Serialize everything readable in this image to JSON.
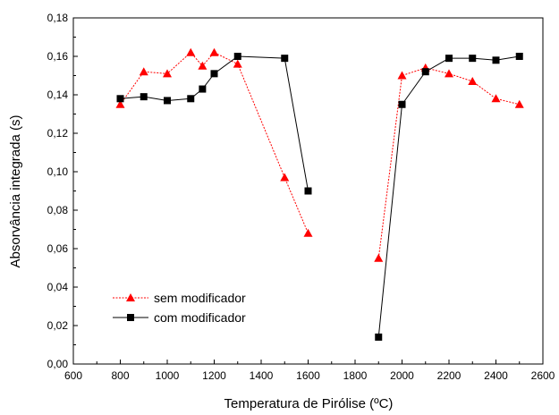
{
  "chart_data": {
    "type": "scatter",
    "xlabel": "Temperatura de Pirólise (ºC)",
    "ylabel": "Absorvância integrada (s)",
    "xlim": [
      600,
      2600
    ],
    "ylim": [
      0.0,
      0.18
    ],
    "x_ticks": [
      600,
      800,
      1000,
      1200,
      1400,
      1600,
      1800,
      2000,
      2200,
      2400,
      2600
    ],
    "x_tick_labels": [
      "600",
      "800",
      "1000",
      "1200",
      "1400",
      "1600",
      "1800",
      "2000",
      "2200",
      "2400",
      "2600"
    ],
    "y_ticks": [
      0.0,
      0.02,
      0.04,
      0.06,
      0.08,
      0.1,
      0.12,
      0.14,
      0.16,
      0.18
    ],
    "y_tick_labels": [
      "0,00",
      "0,02",
      "0,04",
      "0,06",
      "0,08",
      "0,10",
      "0,12",
      "0,14",
      "0,16",
      "0,18"
    ],
    "grid": false,
    "legend_position": "bottom-left",
    "series": [
      {
        "name": "sem modificador",
        "color": "#ff0000",
        "marker": "triangle",
        "segments": [
          {
            "x": [
              800,
              900,
              1000,
              1100,
              1150,
              1200,
              1300,
              1500,
              1600
            ],
            "y": [
              0.135,
              0.152,
              0.151,
              0.162,
              0.155,
              0.162,
              0.156,
              0.097,
              0.068
            ]
          },
          {
            "x": [
              1900,
              2000,
              2100,
              2200,
              2300,
              2400,
              2500
            ],
            "y": [
              0.055,
              0.15,
              0.154,
              0.151,
              0.147,
              0.138,
              0.135
            ]
          }
        ]
      },
      {
        "name": "com modificador",
        "color": "#000000",
        "marker": "square",
        "segments": [
          {
            "x": [
              800,
              900,
              1000,
              1100,
              1150,
              1200,
              1300,
              1500,
              1600
            ],
            "y": [
              0.138,
              0.139,
              0.137,
              0.138,
              0.143,
              0.151,
              0.16,
              0.159,
              0.09
            ]
          },
          {
            "x": [
              1900,
              2000,
              2100,
              2200,
              2300,
              2400,
              2500
            ],
            "y": [
              0.014,
              0.135,
              0.152,
              0.159,
              0.159,
              0.158,
              0.16
            ]
          }
        ]
      }
    ]
  }
}
